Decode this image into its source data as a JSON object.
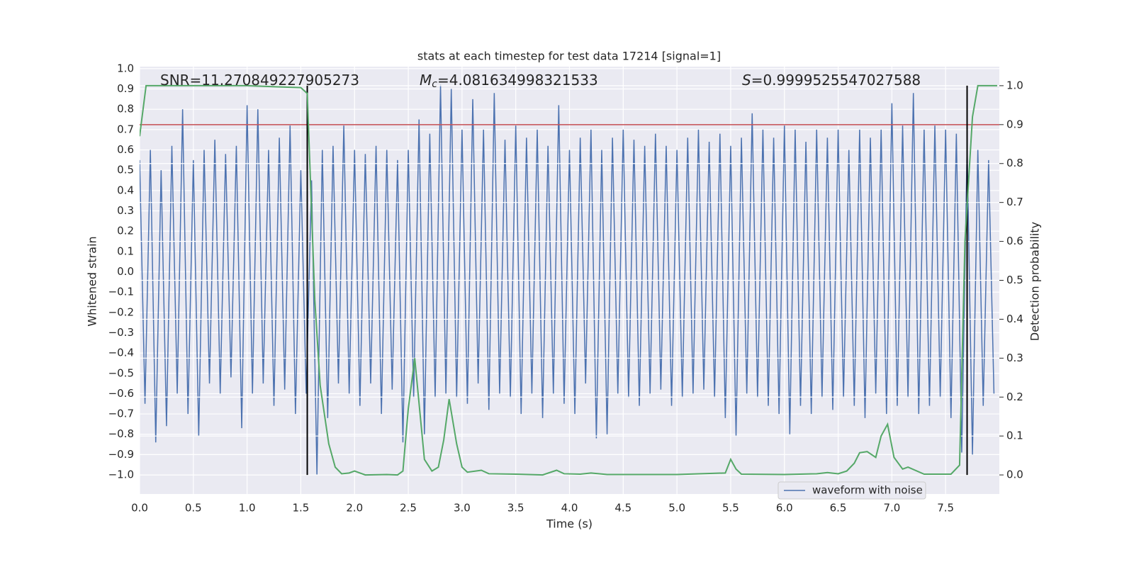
{
  "chart_data": {
    "type": "line",
    "title": "stats at each timestep for test data 17214 [signal=1]",
    "xlabel": "Time (s)",
    "ylabel": "Whitened strain",
    "y2label": "Detection probability",
    "annotations": [
      {
        "text": "SNR=11.270849227905273"
      },
      {
        "symbol": "M",
        "subscript": "c",
        "text": "=4.081634998321533"
      },
      {
        "symbol": "S",
        "text": "=0.9999525547027588"
      }
    ],
    "xlim": [
      0,
      8
    ],
    "ylim": [
      -1.094,
      1.01
    ],
    "y2lim": [
      -0.049,
      1.049
    ],
    "grid": true,
    "legend": "lower right",
    "xticks": [
      {
        "value": 0,
        "label": "0.0"
      },
      0.5,
      {
        "value": 1,
        "label": "1.0"
      },
      1.5,
      {
        "value": 2,
        "label": "2.0"
      },
      2.5,
      {
        "value": 3,
        "label": "3.0"
      },
      3.5,
      {
        "value": 4,
        "label": "4.0"
      },
      4.5,
      {
        "value": 5,
        "label": "5.0"
      },
      5.5,
      {
        "value": 6,
        "label": "6.0"
      },
      6.5,
      {
        "value": 7,
        "label": "7.0"
      },
      7.5
    ],
    "yticks": [
      {
        "value": -1,
        "label": "−1.0"
      },
      {
        "value": -0.9,
        "label": "−0.9"
      },
      {
        "value": -0.8,
        "label": "−0.8"
      },
      {
        "value": -0.7,
        "label": "−0.7"
      },
      {
        "value": -0.6,
        "label": "−0.6"
      },
      {
        "value": -0.5,
        "label": "−0.5"
      },
      {
        "value": -0.4,
        "label": "−0.4"
      },
      {
        "value": -0.3,
        "label": "−0.3"
      },
      {
        "value": -0.2,
        "label": "−0.2"
      },
      {
        "value": -0.1,
        "label": "−0.1"
      },
      {
        "value": 0,
        "label": "0.0"
      },
      0.1,
      0.2,
      0.3,
      0.4,
      0.5,
      0.6,
      0.7,
      0.8,
      0.9,
      {
        "value": 1,
        "label": "1.0"
      }
    ],
    "y2ticks": [
      {
        "value": 0,
        "label": "0.0"
      },
      0.1,
      0.2,
      0.3,
      0.4,
      0.5,
      0.6,
      0.7,
      0.8,
      0.9,
      {
        "value": 1,
        "label": "1.0"
      }
    ],
    "series": [
      {
        "name": "waveform with noise",
        "color": "#4c72b0",
        "x": [
          0,
          0.05,
          0.1,
          0.15,
          0.2,
          0.25,
          0.3,
          0.35,
          0.4,
          0.45,
          0.5,
          0.55,
          0.6,
          0.65,
          0.7,
          0.75,
          0.8,
          0.85,
          0.9,
          0.95,
          1,
          1.05,
          1.1,
          1.15,
          1.2,
          1.25,
          1.3,
          1.35,
          1.4,
          1.45,
          1.5,
          1.55,
          1.6,
          1.65,
          1.7,
          1.75,
          1.8,
          1.85,
          1.9,
          1.95,
          2,
          2.05,
          2.1,
          2.15,
          2.2,
          2.25,
          2.3,
          2.35,
          2.4,
          2.45,
          2.5,
          2.55,
          2.6,
          2.65,
          2.7,
          2.75,
          2.8,
          2.85,
          2.9,
          2.95,
          3,
          3.05,
          3.1,
          3.15,
          3.2,
          3.25,
          3.3,
          3.35,
          3.4,
          3.45,
          3.5,
          3.55,
          3.6,
          3.65,
          3.7,
          3.75,
          3.8,
          3.85,
          3.9,
          3.95,
          4,
          4.05,
          4.1,
          4.15,
          4.2,
          4.25,
          4.3,
          4.35,
          4.4,
          4.45,
          4.5,
          4.55,
          4.6,
          4.65,
          4.7,
          4.75,
          4.8,
          4.85,
          4.9,
          4.95,
          5,
          5.05,
          5.1,
          5.15,
          5.2,
          5.25,
          5.3,
          5.35,
          5.4,
          5.45,
          5.5,
          5.55,
          5.6,
          5.65,
          5.7,
          5.75,
          5.8,
          5.85,
          5.9,
          5.95,
          6,
          6.05,
          6.1,
          6.15,
          6.2,
          6.25,
          6.3,
          6.35,
          6.4,
          6.45,
          6.5,
          6.55,
          6.6,
          6.65,
          6.7,
          6.75,
          6.8,
          6.85,
          6.9,
          6.95,
          7,
          7.05,
          7.1,
          7.15,
          7.2,
          7.25,
          7.3,
          7.35,
          7.4,
          7.45,
          7.5,
          7.55,
          7.6,
          7.65,
          7.7,
          7.75,
          7.8,
          7.85,
          7.9,
          7.95
        ],
        "values": [
          0.55,
          -0.65,
          0.6,
          -0.84,
          0.5,
          -0.76,
          0.62,
          -0.6,
          0.8,
          -0.7,
          0.55,
          -0.81,
          0.6,
          -0.55,
          0.65,
          -0.6,
          0.58,
          -0.52,
          0.62,
          -0.77,
          0.82,
          -0.6,
          0.8,
          -0.55,
          0.6,
          -0.66,
          0.66,
          -0.58,
          0.72,
          -0.7,
          0.5,
          -0.6,
          0.45,
          -1.0,
          0.6,
          -0.72,
          0.62,
          -0.55,
          0.72,
          -0.6,
          0.6,
          -0.66,
          0.58,
          -0.55,
          0.62,
          -0.7,
          0.6,
          -0.58,
          0.55,
          -0.84,
          0.6,
          -0.62,
          0.75,
          -0.8,
          0.68,
          -0.62,
          0.92,
          -0.6,
          0.9,
          -0.62,
          0.7,
          -0.65,
          0.85,
          -0.55,
          0.7,
          -0.68,
          0.88,
          -0.6,
          0.65,
          -0.62,
          0.72,
          -0.7,
          0.66,
          -0.6,
          0.7,
          -0.72,
          0.62,
          -0.6,
          0.82,
          -0.65,
          0.6,
          -0.7,
          0.66,
          -0.55,
          0.7,
          -0.82,
          0.6,
          -0.8,
          0.66,
          -0.6,
          0.7,
          -0.62,
          0.65,
          -0.66,
          0.62,
          -0.6,
          0.68,
          -0.58,
          0.62,
          -0.66,
          0.6,
          -0.62,
          0.66,
          -0.6,
          0.7,
          -0.58,
          0.64,
          -0.62,
          0.68,
          -0.72,
          0.62,
          -0.81,
          0.66,
          -0.6,
          0.78,
          -0.62,
          0.7,
          -0.66,
          0.66,
          -0.7,
          0.72,
          -0.8,
          0.7,
          -0.66,
          0.64,
          -0.7,
          0.7,
          -0.62,
          0.66,
          -0.68,
          0.7,
          -0.62,
          0.6,
          -0.66,
          0.7,
          -0.72,
          0.66,
          -0.6,
          0.7,
          -0.7,
          0.83,
          -0.66,
          0.72,
          -0.62,
          0.88,
          -0.7,
          0.7,
          -0.66,
          0.72,
          -0.62,
          0.7,
          -0.72,
          0.68,
          -0.89,
          0.62,
          -0.9,
          0.6,
          -0.66,
          0.55,
          -0.6
        ]
      }
    ],
    "probability": {
      "color": "#55a868",
      "axis": "y2",
      "x": [
        0,
        0.06,
        0.5,
        1,
        1.5,
        1.56,
        1.63,
        1.68,
        1.76,
        1.82,
        1.88,
        1.95,
        2,
        2.1,
        2.3,
        2.4,
        2.45,
        2.5,
        2.56,
        2.65,
        2.72,
        2.78,
        2.83,
        2.88,
        2.95,
        3,
        3.05,
        3.18,
        3.25,
        3.5,
        3.75,
        3.88,
        3.95,
        4.1,
        4.2,
        4.35,
        5,
        5.45,
        5.5,
        5.55,
        5.6,
        6,
        6.3,
        6.4,
        6.5,
        6.58,
        6.65,
        6.7,
        6.77,
        6.85,
        6.9,
        6.96,
        7.02,
        7.1,
        7.15,
        7.3,
        7.55,
        7.63,
        7.68,
        7.75,
        7.8,
        7.98
      ],
      "values": [
        0.87,
        1.0,
        1.0,
        1.0,
        0.995,
        0.98,
        0.45,
        0.23,
        0.08,
        0.02,
        0.003,
        0.005,
        0.01,
        0.0,
        0.001,
        0.0,
        0.01,
        0.17,
        0.3,
        0.04,
        0.01,
        0.02,
        0.09,
        0.195,
        0.08,
        0.02,
        0.007,
        0.012,
        0.003,
        0.002,
        0.0,
        0.012,
        0.003,
        0.002,
        0.005,
        0.001,
        0.001,
        0.005,
        0.04,
        0.015,
        0.002,
        0.001,
        0.003,
        0.006,
        0.003,
        0.01,
        0.03,
        0.057,
        0.06,
        0.045,
        0.1,
        0.13,
        0.045,
        0.015,
        0.02,
        0.002,
        0.002,
        0.025,
        0.6,
        0.92,
        1.0,
        1.0
      ]
    },
    "threshold": {
      "value": 0.9,
      "color": "#c44e52",
      "axis": "y2"
    },
    "vlines": {
      "x": [
        1.56,
        7.7
      ],
      "ymin": 0,
      "ymax": 1,
      "color": "#000000",
      "axis": "y2"
    }
  }
}
